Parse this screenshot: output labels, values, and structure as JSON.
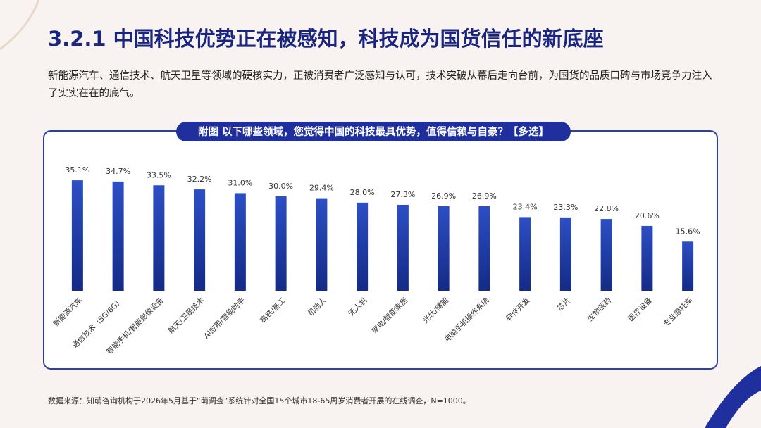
{
  "slide": {
    "heading": "3.2.1  中国科技优势正在被感知，科技成为国货信任的新底座",
    "description": "新能源汽车、通信技术、航天卫星等领域的硬核实力，正被消费者广泛感知与认可，技术突破从幕后走向台前，为国货的品质口碑与市场竞争力注入了实实在在的底气。",
    "source": "数据来源：知萌咨询机构于2026年5月基于“萌调查”系统针对全国15个城市18-65周岁消费者开展的在线调查，N=1000。"
  },
  "chart_data": {
    "type": "bar",
    "title": "附图  以下哪些领域，您觉得中国的科技最具优势，值得信赖与自豪？【多选】",
    "categories": [
      "新能源汽车",
      "通信技术（5G/6G）",
      "智能手机/智能影像设备",
      "航天/卫星技术",
      "AI应用/智能助手",
      "高铁/基工",
      "机器人",
      "无人机",
      "家电/智能家居",
      "光伏/储能",
      "电脑手机操作系统",
      "软件开发",
      "芯片",
      "生物医药",
      "医疗设备",
      "专业摩托车"
    ],
    "values": [
      35.1,
      34.7,
      33.5,
      32.2,
      31.0,
      30.0,
      29.4,
      28.0,
      27.3,
      26.9,
      26.9,
      23.4,
      23.3,
      22.8,
      20.6,
      15.6
    ],
    "value_labels": [
      "35.1%",
      "34.7%",
      "33.5%",
      "32.2%",
      "31.0%",
      "30.0%",
      "29.4%",
      "28.0%",
      "27.3%",
      "26.9%",
      "26.9%",
      "23.4%",
      "23.3%",
      "22.8%",
      "20.6%",
      "15.6%"
    ],
    "color": "#1f3aa8"
  }
}
